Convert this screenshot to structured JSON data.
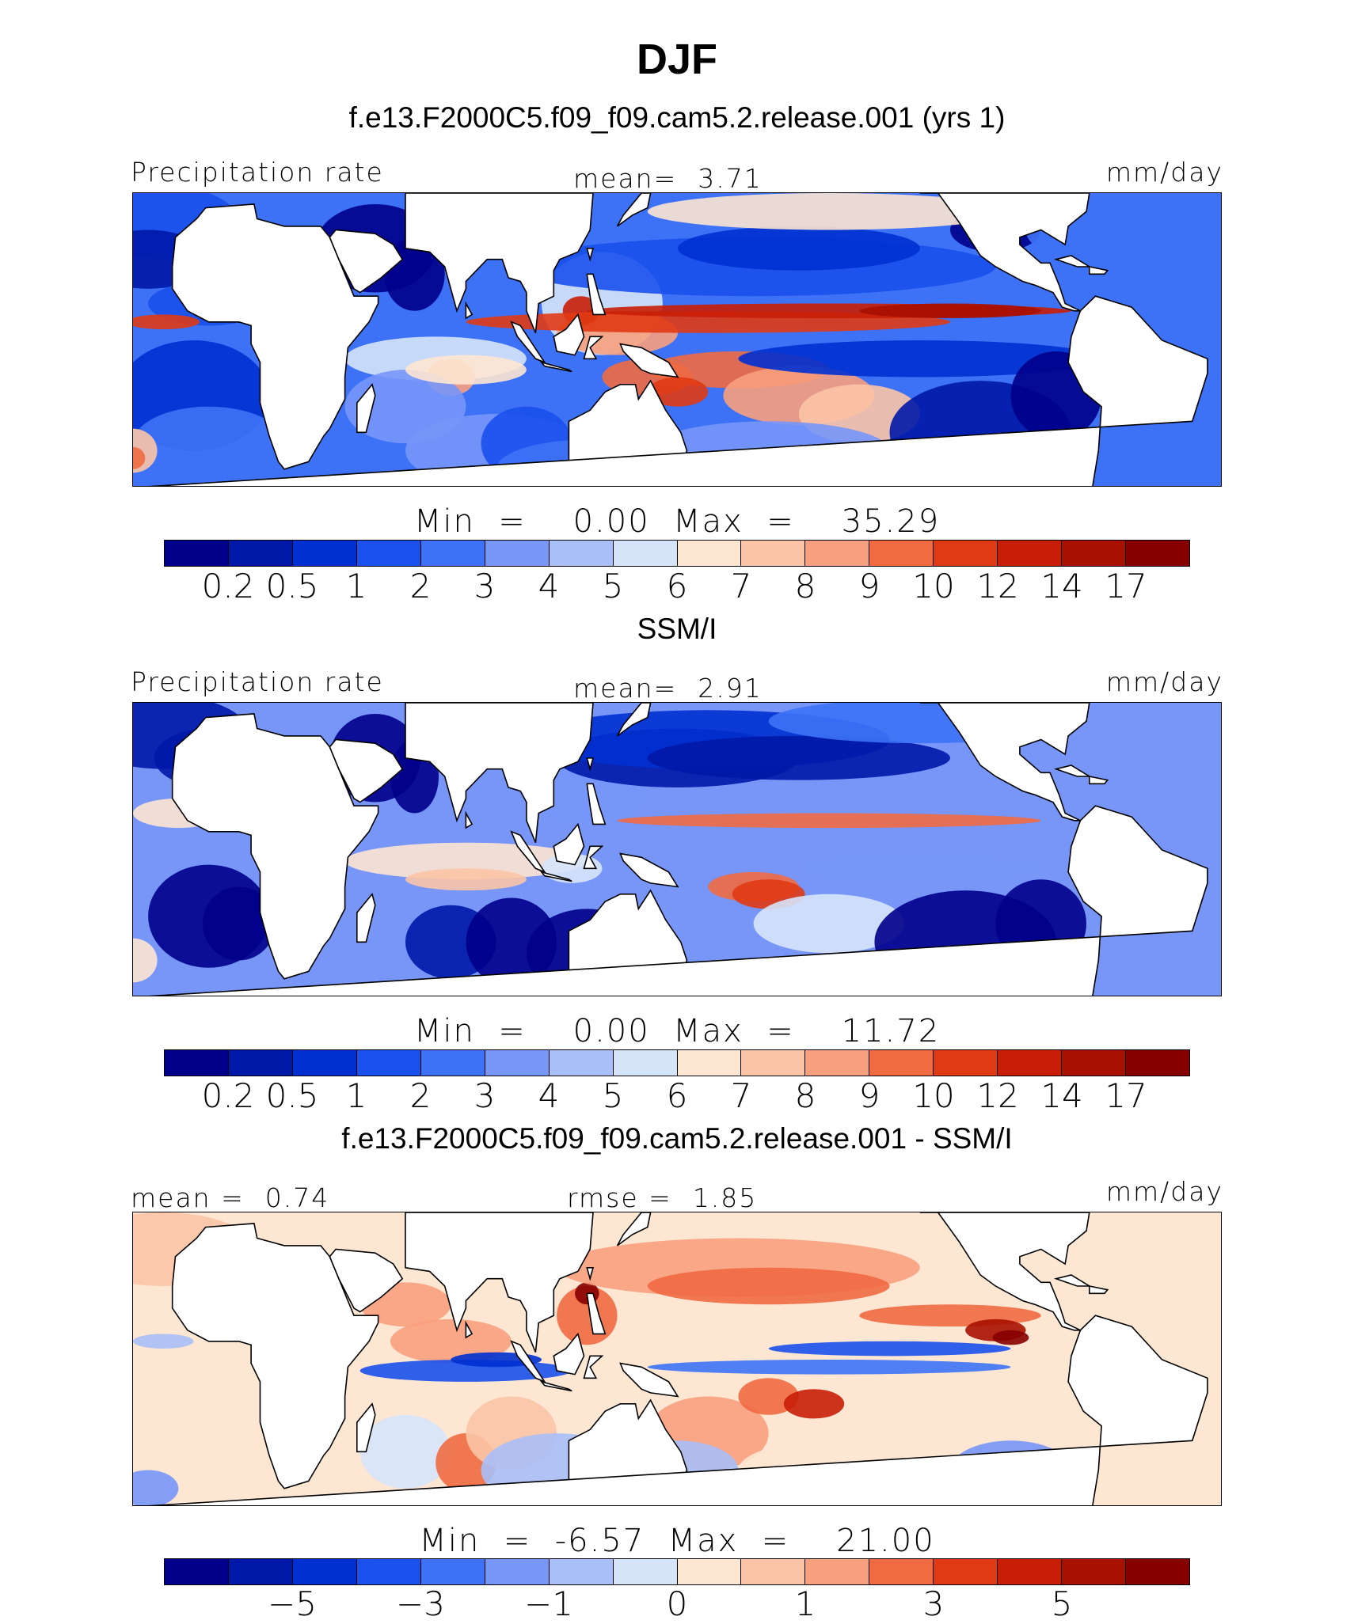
{
  "title": "DJF",
  "colors": {
    "levels14": [
      "#00008b",
      "#0018a8",
      "#0030d0",
      "#1a50ec",
      "#3d72f6",
      "#7796f8",
      "#a8bff8",
      "#d6e4fa",
      "#fde6d2",
      "#fbc4a6",
      "#f8a07e",
      "#f06a42",
      "#e03a14",
      "#c81e06",
      "#a81000",
      "#870000"
    ],
    "diff": [
      "#00008b",
      "#0018a8",
      "#0030d0",
      "#1a50ec",
      "#3d72f6",
      "#7796f8",
      "#a8bff8",
      "#d6e4fa",
      "#fde6d2",
      "#fbc4a6",
      "#f8a07e",
      "#f06a42",
      "#e03a14",
      "#c81e06",
      "#a81000",
      "#870000"
    ],
    "land": "#ffffff",
    "coast": "#000000"
  },
  "panels": [
    {
      "title": "f.e13.F2000C5.f09_f09.cam5.2.release.001 (yrs 1)",
      "left_label": "Precipitation rate",
      "center_label": "mean=",
      "center_value": "3.71",
      "right_label": "mm/day",
      "min_label": "Min  =",
      "min_value": "0.00",
      "max_label": "Max  =",
      "max_value": "35.29",
      "ticks": [
        "0.2",
        "0.5",
        "1",
        "2",
        "3",
        "4",
        "5",
        "6",
        "7",
        "8",
        "9",
        "10",
        "12",
        "14",
        "17"
      ],
      "field": "model"
    },
    {
      "title": "SSM/I",
      "left_label": "Precipitation rate",
      "center_label": "mean=",
      "center_value": "2.91",
      "right_label": "mm/day",
      "min_label": "Min  =",
      "min_value": "0.00",
      "max_label": "Max  =",
      "max_value": "11.72",
      "ticks": [
        "0.2",
        "0.5",
        "1",
        "2",
        "3",
        "4",
        "5",
        "6",
        "7",
        "8",
        "9",
        "10",
        "12",
        "14",
        "17"
      ],
      "field": "obs"
    },
    {
      "title": "f.e13.F2000C5.f09_f09.cam5.2.release.001 - SSM/I",
      "left_label": "mean =",
      "left_value": "0.74",
      "center_label": "rmse =",
      "center_value": "1.85",
      "right_label": "mm/day",
      "min_label": "Min  =",
      "min_value": "-6.57",
      "max_label": "Max  =",
      "max_value": "21.00",
      "ticks": [
        "−5",
        "−3",
        "−1",
        "0",
        "1",
        "3",
        "5"
      ],
      "field": "diff"
    }
  ]
}
